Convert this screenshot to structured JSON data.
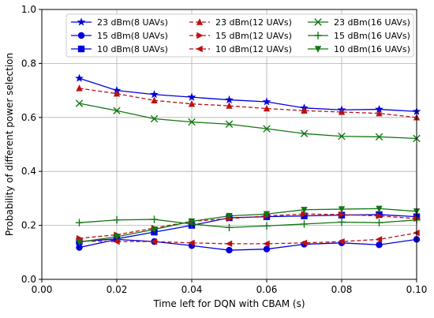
{
  "chart_data": {
    "type": "line",
    "xlabel": "Time left for DQN with CBAM (s)",
    "ylabel": "Probability of different power selection",
    "xlim": [
      0.0,
      0.1
    ],
    "ylim": [
      0.0,
      1.0
    ],
    "x_ticks": [
      "0.00",
      "0.02",
      "0.04",
      "0.06",
      "0.08",
      "0.10"
    ],
    "y_ticks": [
      "0.0",
      "0.2",
      "0.4",
      "0.6",
      "0.8",
      "1.0"
    ],
    "grid": true,
    "legend_position": "top",
    "x": [
      0.01,
      0.02,
      0.03,
      0.04,
      0.05,
      0.06,
      0.07,
      0.08,
      0.09,
      0.1
    ],
    "series": [
      {
        "name": "23 dBm(8 UAVs)",
        "color": "#0000dd",
        "linestyle": "solid",
        "marker": "star",
        "values": [
          0.745,
          0.7,
          0.685,
          0.675,
          0.665,
          0.658,
          0.635,
          0.628,
          0.63,
          0.622
        ]
      },
      {
        "name": "15 dBm(8 UAVs)",
        "color": "#0000dd",
        "linestyle": "solid",
        "marker": "circle",
        "values": [
          0.118,
          0.148,
          0.14,
          0.125,
          0.108,
          0.112,
          0.13,
          0.135,
          0.128,
          0.148
        ]
      },
      {
        "name": "10 dBm(8 UAVs)",
        "color": "#0000dd",
        "linestyle": "solid",
        "marker": "square",
        "values": [
          0.14,
          0.15,
          0.175,
          0.2,
          0.228,
          0.232,
          0.235,
          0.238,
          0.24,
          0.232
        ]
      },
      {
        "name": "23 dBm(12 UAVs)",
        "color": "#bb1111",
        "linestyle": "dashed",
        "marker": "triangle-up",
        "values": [
          0.708,
          0.688,
          0.663,
          0.65,
          0.643,
          0.633,
          0.625,
          0.62,
          0.615,
          0.6
        ]
      },
      {
        "name": "15 dBm(12 UAVs)",
        "color": "#bb1111",
        "linestyle": "dashed",
        "marker": "triangle-right",
        "values": [
          0.152,
          0.165,
          0.19,
          0.215,
          0.225,
          0.235,
          0.242,
          0.24,
          0.235,
          0.225
        ]
      },
      {
        "name": "10 dBm(12 UAVs)",
        "color": "#bb1111",
        "linestyle": "dashed",
        "marker": "triangle-left",
        "values": [
          0.142,
          0.14,
          0.14,
          0.135,
          0.132,
          0.132,
          0.135,
          0.14,
          0.148,
          0.172
        ]
      },
      {
        "name": "23 dBm(16 UAVs)",
        "color": "#117711",
        "linestyle": "solid",
        "marker": "x",
        "values": [
          0.652,
          0.625,
          0.595,
          0.583,
          0.575,
          0.558,
          0.54,
          0.53,
          0.528,
          0.522
        ]
      },
      {
        "name": "15 dBm(16 UAVs)",
        "color": "#117711",
        "linestyle": "solid",
        "marker": "plus",
        "values": [
          0.21,
          0.22,
          0.222,
          0.205,
          0.192,
          0.198,
          0.205,
          0.212,
          0.21,
          0.22
        ]
      },
      {
        "name": "10 dBm(16 UAVs)",
        "color": "#117711",
        "linestyle": "solid",
        "marker": "triangle-down",
        "values": [
          0.138,
          0.158,
          0.185,
          0.215,
          0.235,
          0.242,
          0.258,
          0.26,
          0.262,
          0.252
        ]
      }
    ]
  }
}
